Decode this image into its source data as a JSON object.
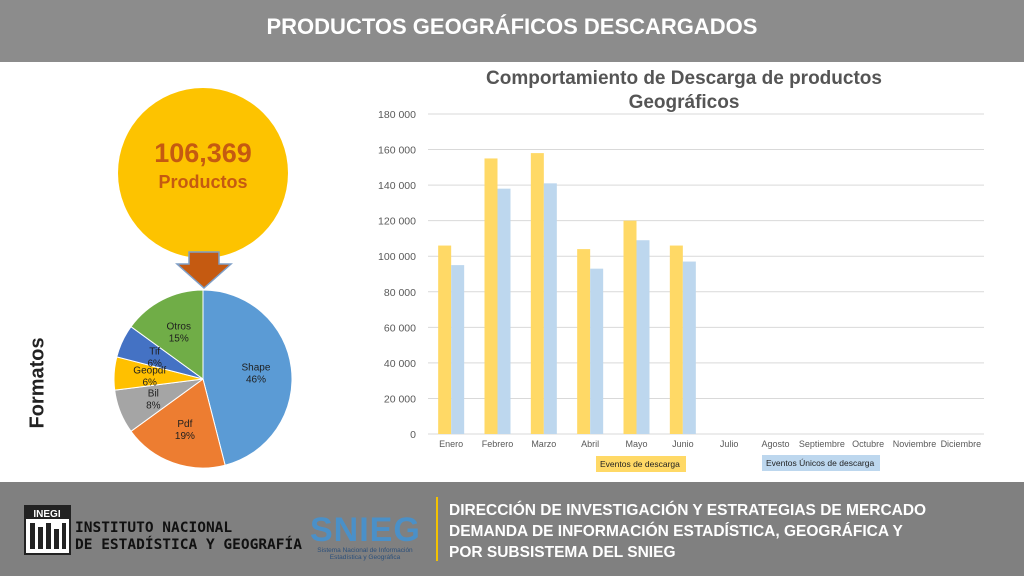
{
  "header": {
    "title": "PRODUCTOS GEOGRÁFICOS DESCARGADOS"
  },
  "summary": {
    "total": "106,369",
    "label": "Productos"
  },
  "pie": {
    "side_label": "Formatos",
    "slices": [
      {
        "name": "Shape",
        "pct_label": "46%",
        "value": 46,
        "color": "#5b9bd5"
      },
      {
        "name": "Pdf",
        "pct_label": "19%",
        "value": 19,
        "color": "#ed7d31"
      },
      {
        "name": "Bil",
        "pct_label": "8%",
        "value": 8,
        "color": "#a5a5a5"
      },
      {
        "name": "Geopdf",
        "pct_label": "6%",
        "value": 6,
        "color": "#ffc000"
      },
      {
        "name": "Tif",
        "pct_label": "6%",
        "value": 6,
        "color": "#4472c4"
      },
      {
        "name": "Otros",
        "pct_label": "15%",
        "value": 15,
        "color": "#70ad47"
      }
    ]
  },
  "chart_data": {
    "type": "bar",
    "title": "Comportamiento de Descarga de productos Geográficos",
    "categories": [
      "Enero",
      "Febrero",
      "Marzo",
      "Abril",
      "Mayo",
      "Junio",
      "Julio",
      "Agosto",
      "Septiembre",
      "Octubre",
      "Noviembre",
      "Diciembre"
    ],
    "series": [
      {
        "name": "Eventos de descarga",
        "color": "#ffd966",
        "values": [
          106000,
          155000,
          158000,
          104000,
          120000,
          106000,
          null,
          null,
          null,
          null,
          null,
          null
        ]
      },
      {
        "name": "Eventos Únicos de descarga",
        "color": "#bdd7ee",
        "values": [
          95000,
          138000,
          141000,
          93000,
          109000,
          97000,
          null,
          null,
          null,
          null,
          null,
          null
        ]
      }
    ],
    "ylim": [
      0,
      180000
    ],
    "yticks": [
      "0",
      "20 000",
      "40 000",
      "60 000",
      "80 000",
      "100 000",
      "120 000",
      "140 000",
      "160 000",
      "180 000"
    ],
    "grid": true,
    "legend": "bottom"
  },
  "footer": {
    "org_line1": "INSTITUTO NACIONAL",
    "org_line2": "DE ESTADÍSTICA Y GEOGRAFÍA",
    "logo_text": "INEGI",
    "snieg": "SNIEG",
    "snieg_sub": "Sistema Nacional de Información Estadística y Geográfica",
    "text_line1": "DIRECCIÓN DE INVESTIGACIÓN Y ESTRATEGIAS DE MERCADO",
    "text_line2": "DEMANDA DE INFORMACIÓN ESTADÍSTICA, GEOGRÁFICA Y",
    "text_line3": "POR SUBSISTEMA DEL SNIEG"
  }
}
